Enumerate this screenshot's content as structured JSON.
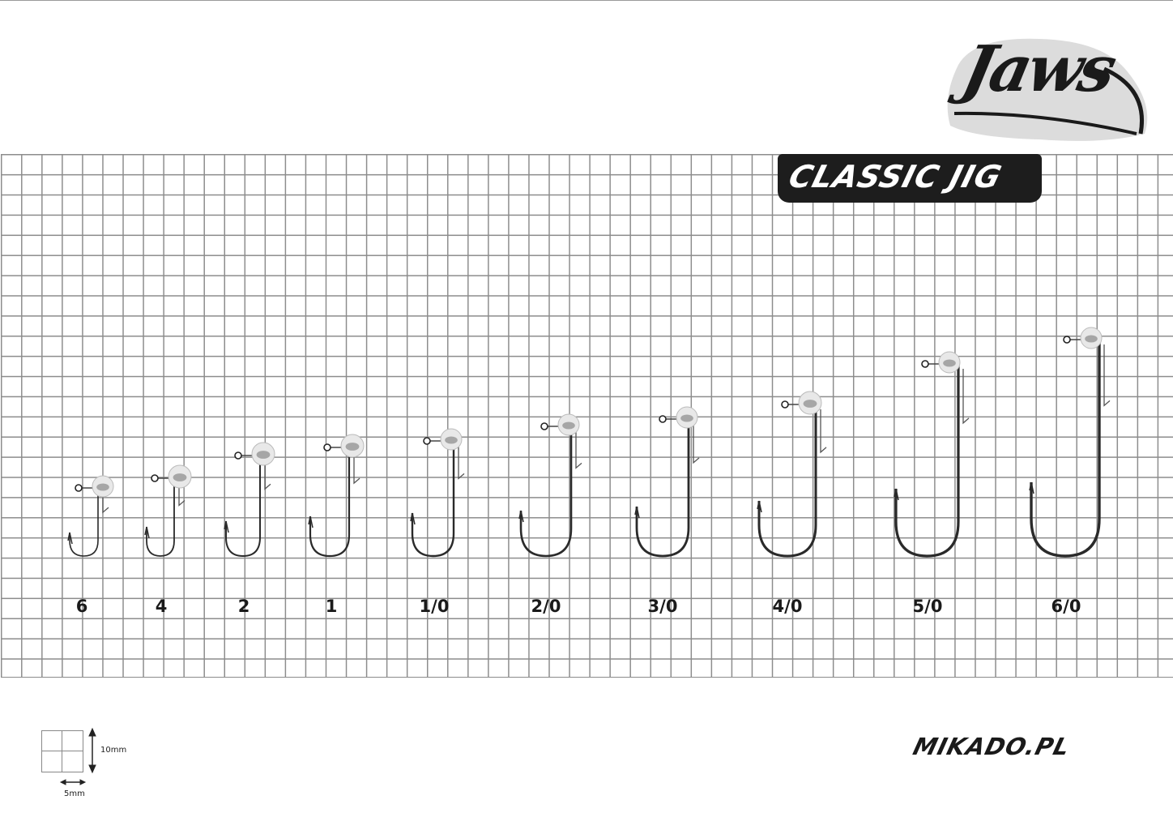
{
  "brand": {
    "logo_text": "Jaws",
    "product_badge": "CLASSIC JIG",
    "website": "MIKADO.PL"
  },
  "colors": {
    "grid": "#8c8c8c",
    "hook": "#2a2a2a",
    "banner": "#1d1d1d",
    "logo_backdrop": "#dcdcdc"
  },
  "hook_sizes": [
    {
      "label": "6"
    },
    {
      "label": "4"
    },
    {
      "label": "2"
    },
    {
      "label": "1"
    },
    {
      "label": "1/0"
    },
    {
      "label": "2/0"
    },
    {
      "label": "3/0"
    },
    {
      "label": "4/0"
    },
    {
      "label": "5/0"
    },
    {
      "label": "6/0"
    }
  ],
  "scale_legend": {
    "vertical": "10mm",
    "horizontal": "5mm"
  }
}
